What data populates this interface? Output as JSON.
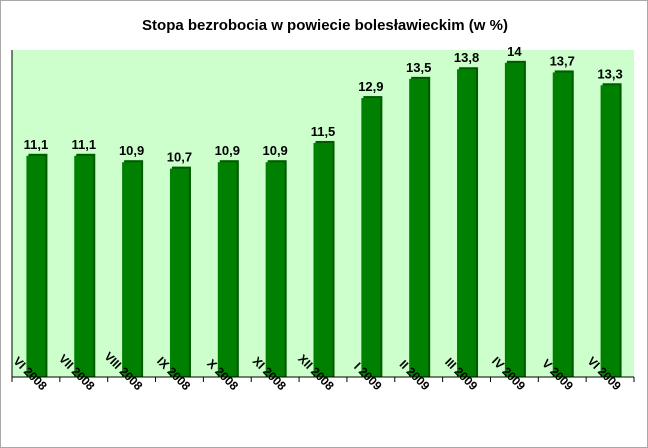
{
  "colors": {
    "plot_background": "#ccffcc",
    "bar_fill": "#008000",
    "bar_shadow": "#005a00",
    "axis": "#000000"
  },
  "chart_data": {
    "type": "bar",
    "title": "Stopa bezrobocia w powiecie bolesławieckim (w %)",
    "xlabel": "",
    "ylabel": "",
    "categories": [
      "VI 2008",
      "VII 2008",
      "VIII 2008",
      "IX 2008",
      "X 2008",
      "XI 2008",
      "XII 2008",
      "I 2009",
      "II 2009",
      "III 2009",
      "IV 2009",
      "V 2009",
      "VI 2009"
    ],
    "values": [
      11.1,
      11.1,
      10.9,
      10.7,
      10.9,
      10.9,
      11.5,
      12.9,
      13.5,
      13.8,
      14,
      13.7,
      13.3
    ],
    "value_labels": [
      "11,1",
      "11,1",
      "10,9",
      "10,7",
      "10,9",
      "10,9",
      "11,5",
      "12,9",
      "13,5",
      "13,8",
      "14",
      "13,7",
      "13,3"
    ],
    "ylim": [
      4.2,
      14.4
    ],
    "grid": false,
    "legend": "none"
  }
}
